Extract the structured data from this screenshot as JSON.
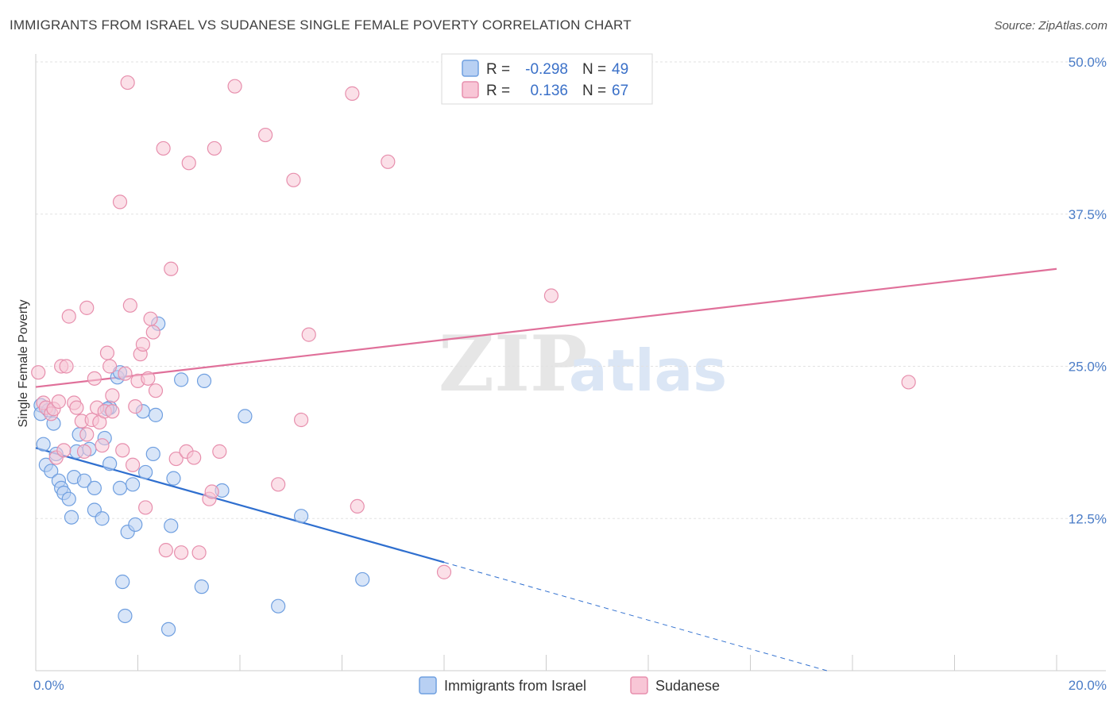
{
  "title": "IMMIGRANTS FROM ISRAEL VS SUDANESE SINGLE FEMALE POVERTY CORRELATION CHART",
  "source": "Source: ZipAtlas.com",
  "watermark": {
    "zip": "ZIP",
    "atlas": "atlas"
  },
  "chart_data": {
    "type": "scatter",
    "xlabel": "",
    "ylabel": "Single Female Poverty",
    "xlim": [
      0,
      20
    ],
    "ylim": [
      0,
      50
    ],
    "x_tick_labels": [
      {
        "value": 0,
        "label": "0.0%"
      },
      {
        "value": 20,
        "label": "20.0%"
      }
    ],
    "y_tick_labels": [
      {
        "value": 12.5,
        "label": "12.5%"
      },
      {
        "value": 25,
        "label": "25.0%"
      },
      {
        "value": 37.5,
        "label": "37.5%"
      },
      {
        "value": 50,
        "label": "50.0%"
      }
    ],
    "grid": true,
    "legend": {
      "placement": "top-center",
      "rows": [
        {
          "r_label": "R =",
          "r_value": "-0.298",
          "n_label": "N =",
          "n_value": "49"
        },
        {
          "r_label": "R =",
          "r_value": "0.136",
          "n_label": "N =",
          "n_value": "67"
        }
      ]
    },
    "series": [
      {
        "name": "Immigrants from Israel",
        "color": "#6f9fe0",
        "fill": "#b8d0f3",
        "trend": {
          "x0": 0,
          "y0": 18.3,
          "x1": 8,
          "y1": 8.9,
          "dashed_to_x": 15.5,
          "dashed_to_y": 0
        },
        "points": [
          [
            0.1,
            21.8
          ],
          [
            0.1,
            21.1
          ],
          [
            0.15,
            18.6
          ],
          [
            0.2,
            16.9
          ],
          [
            0.25,
            21.4
          ],
          [
            0.3,
            16.4
          ],
          [
            0.35,
            20.3
          ],
          [
            0.4,
            17.8
          ],
          [
            0.45,
            15.6
          ],
          [
            0.5,
            15.0
          ],
          [
            0.55,
            14.6
          ],
          [
            0.65,
            14.1
          ],
          [
            0.7,
            12.6
          ],
          [
            0.75,
            15.9
          ],
          [
            0.8,
            18.0
          ],
          [
            0.85,
            19.4
          ],
          [
            0.95,
            15.6
          ],
          [
            1.05,
            18.2
          ],
          [
            1.15,
            15.0
          ],
          [
            1.15,
            13.2
          ],
          [
            1.3,
            12.5
          ],
          [
            1.35,
            19.1
          ],
          [
            1.45,
            17.0
          ],
          [
            1.45,
            21.6
          ],
          [
            1.6,
            24.1
          ],
          [
            1.65,
            15.0
          ],
          [
            1.7,
            7.3
          ],
          [
            1.75,
            4.5
          ],
          [
            1.8,
            11.4
          ],
          [
            1.9,
            15.3
          ],
          [
            1.95,
            12.0
          ],
          [
            2.1,
            21.3
          ],
          [
            2.15,
            16.3
          ],
          [
            2.3,
            17.8
          ],
          [
            2.35,
            21.0
          ],
          [
            2.4,
            28.5
          ],
          [
            2.6,
            3.4
          ],
          [
            2.65,
            11.9
          ],
          [
            2.7,
            15.8
          ],
          [
            2.85,
            23.9
          ],
          [
            3.25,
            6.9
          ],
          [
            3.3,
            23.8
          ],
          [
            3.65,
            14.8
          ],
          [
            4.1,
            20.9
          ],
          [
            4.75,
            5.3
          ],
          [
            5.2,
            12.7
          ],
          [
            6.4,
            7.5
          ],
          [
            1.65,
            24.5
          ],
          [
            1.4,
            21.5
          ]
        ]
      },
      {
        "name": "Sudanese",
        "color": "#e78fad",
        "fill": "#f8c6d6",
        "trend": {
          "x0": 0,
          "y0": 23.3,
          "x1": 20,
          "y1": 33.0
        },
        "points": [
          [
            0.05,
            24.5
          ],
          [
            0.15,
            22.0
          ],
          [
            0.2,
            21.6
          ],
          [
            0.3,
            21.1
          ],
          [
            0.35,
            21.5
          ],
          [
            0.4,
            17.5
          ],
          [
            0.45,
            22.1
          ],
          [
            0.5,
            25.0
          ],
          [
            0.55,
            18.1
          ],
          [
            0.6,
            25.0
          ],
          [
            0.65,
            29.1
          ],
          [
            0.75,
            22.0
          ],
          [
            0.8,
            21.6
          ],
          [
            0.9,
            20.5
          ],
          [
            0.95,
            18.0
          ],
          [
            1.0,
            19.4
          ],
          [
            1.0,
            29.8
          ],
          [
            1.1,
            20.6
          ],
          [
            1.15,
            24.0
          ],
          [
            1.2,
            21.6
          ],
          [
            1.25,
            20.4
          ],
          [
            1.3,
            18.5
          ],
          [
            1.35,
            21.3
          ],
          [
            1.4,
            26.1
          ],
          [
            1.45,
            25.0
          ],
          [
            1.5,
            22.6
          ],
          [
            1.5,
            21.3
          ],
          [
            1.65,
            38.5
          ],
          [
            1.7,
            18.1
          ],
          [
            1.75,
            24.4
          ],
          [
            1.8,
            48.3
          ],
          [
            1.85,
            30.0
          ],
          [
            1.9,
            16.9
          ],
          [
            1.95,
            21.7
          ],
          [
            2.0,
            23.8
          ],
          [
            2.05,
            26.0
          ],
          [
            2.1,
            26.8
          ],
          [
            2.15,
            13.4
          ],
          [
            2.2,
            24.0
          ],
          [
            2.25,
            28.9
          ],
          [
            2.3,
            27.8
          ],
          [
            2.35,
            23.0
          ],
          [
            2.5,
            42.9
          ],
          [
            2.55,
            9.9
          ],
          [
            2.65,
            33.0
          ],
          [
            2.75,
            17.4
          ],
          [
            2.85,
            9.7
          ],
          [
            2.95,
            18.0
          ],
          [
            3.0,
            41.7
          ],
          [
            3.1,
            17.5
          ],
          [
            3.2,
            9.7
          ],
          [
            3.4,
            14.1
          ],
          [
            3.45,
            14.7
          ],
          [
            3.5,
            42.9
          ],
          [
            3.6,
            18.0
          ],
          [
            3.9,
            48.0
          ],
          [
            4.5,
            44.0
          ],
          [
            4.75,
            15.3
          ],
          [
            5.05,
            40.3
          ],
          [
            5.2,
            20.6
          ],
          [
            5.35,
            27.6
          ],
          [
            6.2,
            47.4
          ],
          [
            6.3,
            13.5
          ],
          [
            6.9,
            41.8
          ],
          [
            8.0,
            8.1
          ],
          [
            10.1,
            30.8
          ],
          [
            17.1,
            23.7
          ]
        ]
      }
    ]
  },
  "bottom_legend": [
    {
      "label": "Immigrants from Israel"
    },
    {
      "label": "Sudanese"
    }
  ]
}
